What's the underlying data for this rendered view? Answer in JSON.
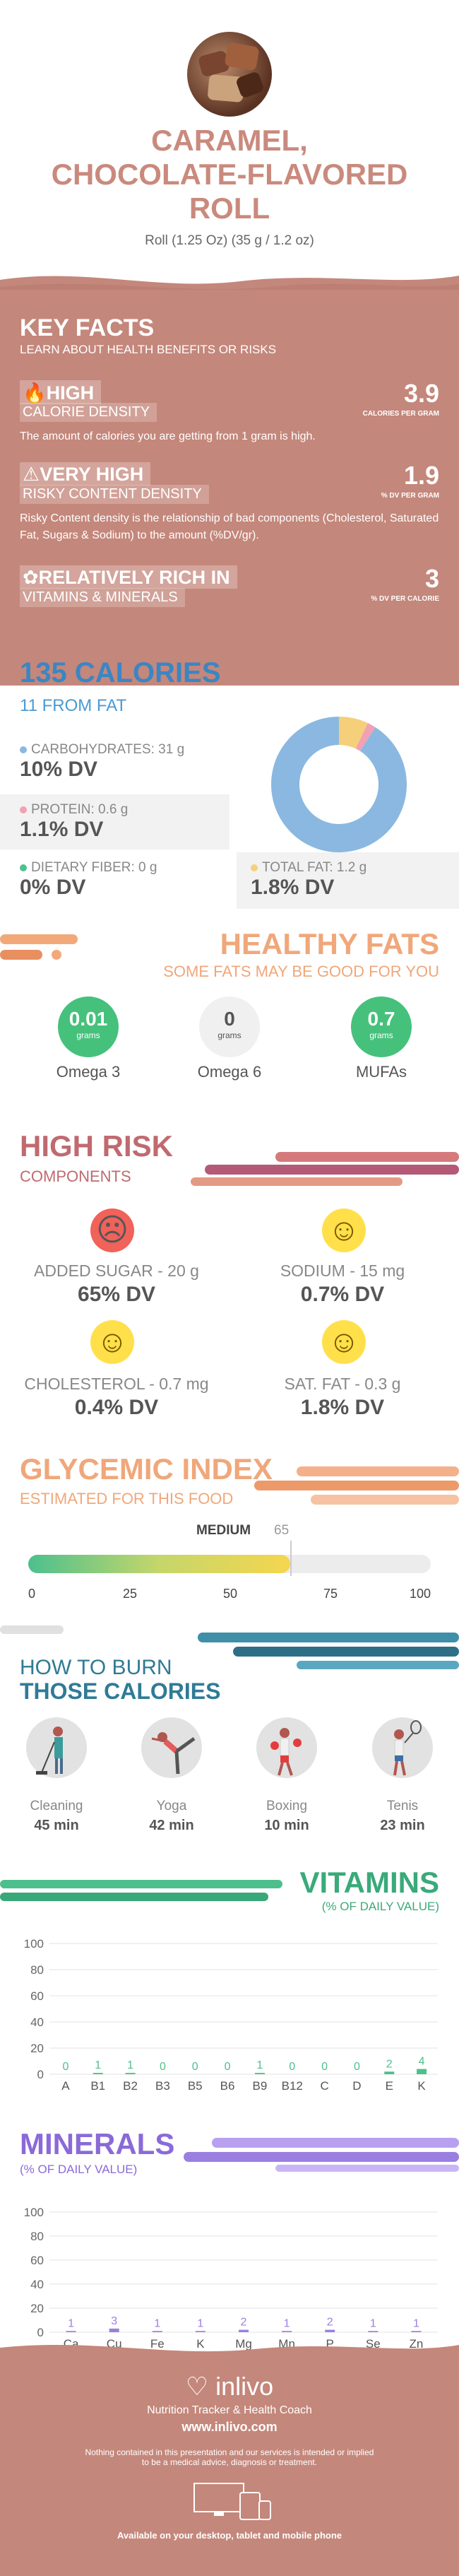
{
  "header": {
    "title_line1": "CARAMEL,",
    "title_line2": "CHOCOLATE-FLAVORED",
    "title_line3": "ROLL",
    "serving": "Roll (1.25 Oz) (35 g / 1.2 oz)"
  },
  "key_facts": {
    "title": "KEY FACTS",
    "subtitle": "LEARN ABOUT HEALTH BENEFITS OR RISKS",
    "calorie_density": {
      "level": "HIGH",
      "label": "CALORIE DENSITY",
      "value": "3.9",
      "unit": "CALORIES PER GRAM",
      "desc": "The amount of calories you are getting from 1 gram is high."
    },
    "risky_content": {
      "level": "VERY HIGH",
      "label": "RISKY CONTENT DENSITY",
      "value": "1.9",
      "unit": "% DV PER GRAM",
      "desc": "Risky Content density is the relationship of bad components (Cholesterol, Saturated Fat, Sugars & Sodium) to the amount (%DV/gr)."
    },
    "vitamins_minerals": {
      "level": "RELATIVELY RICH  IN",
      "label": "VITAMINS & MINERALS",
      "value": "3",
      "unit": "% DV PER CALORIE"
    }
  },
  "calories": {
    "title": "135 CALORIES",
    "from_fat": "11 FROM FAT",
    "carbs_label": "CARBOHYDRATES: 31 g",
    "carbs_dv": "10% DV",
    "protein_label": "PROTEIN: 0.6 g",
    "protein_dv": "1.1% DV",
    "fiber_label": "DIETARY FIBER: 0 g",
    "fiber_dv": "0% DV",
    "fat_label": "TOTAL FAT: 1.2 g",
    "fat_dv": "1.8% DV",
    "colors": {
      "carbs": "#8ab8e0",
      "protein": "#f2a0b4",
      "fiber": "#4cc28c",
      "fat": "#f5cf7a"
    },
    "donut_fractions": {
      "carbs": 0.91,
      "protein": 0.02,
      "fat": 0.07
    }
  },
  "healthy_fats": {
    "title": "HEALTHY FATS",
    "subtitle": "SOME FATS MAY BE GOOD FOR YOU",
    "items": [
      {
        "value": "0.01",
        "unit": "grams",
        "name": "Omega 3"
      },
      {
        "value": "0",
        "unit": "grams",
        "name": "Omega 6"
      },
      {
        "value": "0.7",
        "unit": "grams",
        "name": "MUFAs"
      }
    ]
  },
  "high_risk": {
    "title": "HIGH RISK",
    "subtitle": "COMPONENTS",
    "items": [
      {
        "label": "ADDED SUGAR - 20 g",
        "dv": "65% DV"
      },
      {
        "label": "SODIUM - 15 mg",
        "dv": "0.7% DV"
      },
      {
        "label": "CHOLESTEROL - 0.7 mg",
        "dv": "0.4% DV"
      },
      {
        "label": "SAT. FAT - 0.3 g",
        "dv": "1.8% DV"
      }
    ]
  },
  "glycemic": {
    "title": "GLYCEMIC INDEX",
    "subtitle": "ESTIMATED FOR THIS FOOD",
    "level": "MEDIUM",
    "value": "65",
    "gi_value": 65,
    "ticks": [
      "0",
      "25",
      "50",
      "75",
      "100"
    ]
  },
  "burn": {
    "title_line1": "HOW TO BURN",
    "title_line2": "THOSE CALORIES",
    "items": [
      {
        "name": "Cleaning",
        "min": "45 min"
      },
      {
        "name": "Yoga",
        "min": "42 min"
      },
      {
        "name": "Boxing",
        "min": "10 min"
      },
      {
        "name": "Tenis",
        "min": "23 min"
      }
    ]
  },
  "chart_data": [
    {
      "type": "bar",
      "title": "VITAMINS",
      "subtitle": "(% OF DAILY VALUE)",
      "categories": [
        "A",
        "B1",
        "B2",
        "B3",
        "B5",
        "B6",
        "B9",
        "B12",
        "C",
        "D",
        "E",
        "K"
      ],
      "values": [
        0,
        1,
        1,
        0,
        0,
        0,
        1,
        0,
        0,
        0,
        2,
        4
      ],
      "ylim": [
        0,
        100
      ],
      "yticks": [
        "100",
        "80",
        "60",
        "40",
        "20",
        "0"
      ],
      "color": "#4cbf8c"
    },
    {
      "type": "bar",
      "title": "MINERALS",
      "subtitle": "(% OF DAILY VALUE)",
      "categories": [
        "Ca",
        "Cu",
        "Fe",
        "K",
        "Mg",
        "Mn",
        "P",
        "Se",
        "Zn"
      ],
      "values": [
        1,
        3,
        1,
        1,
        2,
        1,
        2,
        1,
        1
      ],
      "ylim": [
        0,
        100
      ],
      "yticks": [
        "100",
        "80",
        "60",
        "40",
        "20",
        "0"
      ],
      "color": "#9b7fe0"
    }
  ],
  "footer": {
    "brand": "inlivo",
    "tagline": "Nutrition Tracker & Health Coach",
    "url": "www.inlivo.com",
    "disclaimer_line1": "Nothing contained in this presentation and our services is intended or implied",
    "disclaimer_line2": "to be a medical advice, diagnosis or treatment.",
    "available": "Available on your desktop, tablet and mobile phone"
  }
}
